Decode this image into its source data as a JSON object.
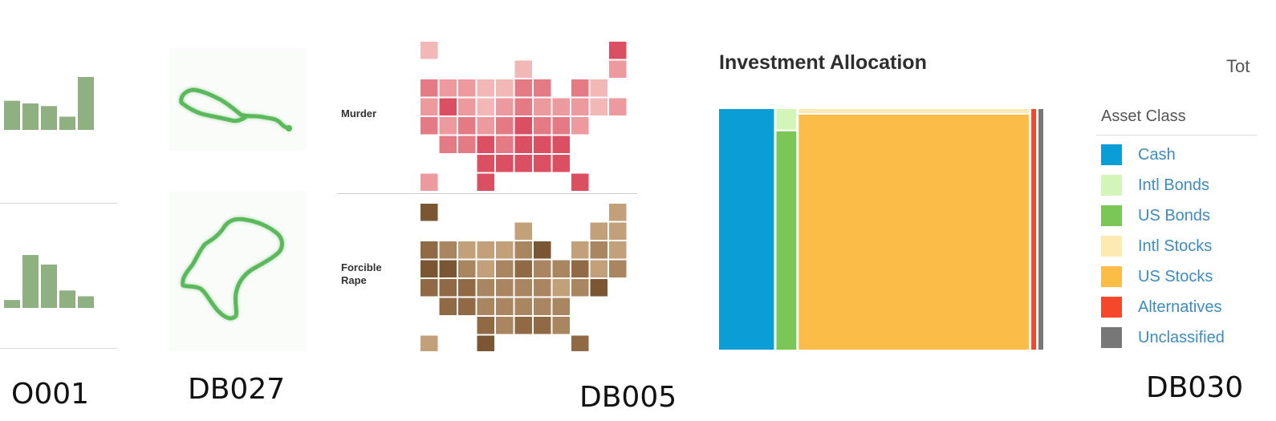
{
  "figures": [
    {
      "label": "O001"
    },
    {
      "label": "DB027"
    },
    {
      "label": "DB005"
    },
    {
      "label": "DB030"
    }
  ],
  "chart_data": [
    {
      "type": "bar",
      "color": "#8fb081",
      "series": [
        {
          "values": [
            0.55,
            0.5,
            0.45,
            0.25,
            1.0
          ]
        },
        {
          "values": [
            0.15,
            1.0,
            0.82,
            0.33,
            0.22
          ]
        }
      ]
    },
    {
      "type": "line",
      "color": "#5cb85c",
      "shapes": [
        "route-trace",
        "loop-outline"
      ]
    },
    {
      "type": "heatmap",
      "rows": [
        {
          "label": "Murder",
          "palette": [
            "#f6d4d4",
            "#f2b8b8",
            "#ec9a9e",
            "#e47a84",
            "#da4f62"
          ]
        },
        {
          "label": "Forcible\nRape",
          "palette": [
            "#d4b894",
            "#c1a07a",
            "#a98560",
            "#8f6a44",
            "#7a5632"
          ]
        }
      ]
    },
    {
      "type": "treemap",
      "title": "Investment Allocation",
      "total_label": "Tot",
      "legend_title": "Asset Class",
      "categories": [
        "Cash",
        "Intl Bonds",
        "US Bonds",
        "Intl Stocks",
        "US Stocks",
        "Alternatives",
        "Unclassified"
      ],
      "values": [
        18,
        1,
        6,
        2,
        71,
        2,
        2
      ],
      "colors": [
        "#0b9ed6",
        "#d3f5b9",
        "#7ac657",
        "#fde9b2",
        "#fbbd47",
        "#f4472c",
        "#777777"
      ]
    }
  ]
}
